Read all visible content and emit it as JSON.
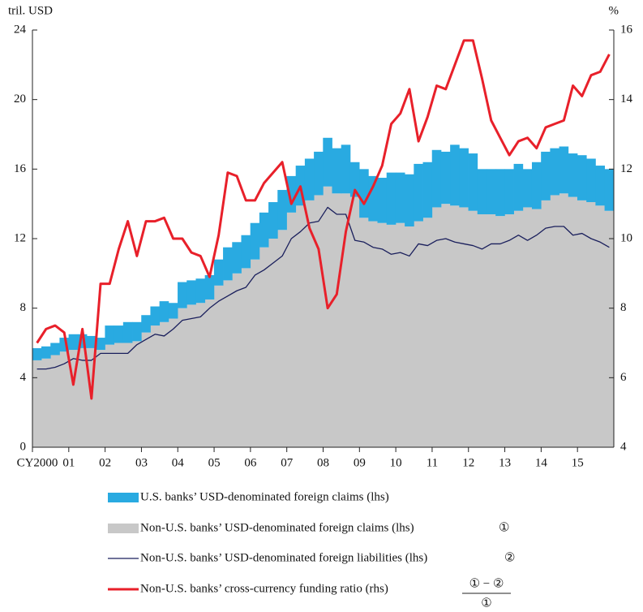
{
  "chart_data": {
    "type": "area",
    "y_axis_label": "tril. USD",
    "y2_axis_label": "%",
    "categories": [
      "CY2000",
      null,
      null,
      null,
      "01",
      null,
      null,
      null,
      "02",
      null,
      null,
      null,
      "03",
      null,
      null,
      null,
      "04",
      null,
      null,
      null,
      "05",
      null,
      null,
      null,
      "06",
      null,
      null,
      null,
      "07",
      null,
      null,
      null,
      "08",
      null,
      null,
      null,
      "09",
      null,
      null,
      null,
      "10",
      null,
      null,
      null,
      "11",
      null,
      null,
      null,
      "12",
      null,
      null,
      null,
      "13",
      null,
      null,
      null,
      "14",
      null,
      null,
      null,
      "15",
      null,
      null,
      null
    ],
    "ylim": [
      0,
      24
    ],
    "yticks": [
      0,
      4,
      8,
      12,
      16,
      20,
      24
    ],
    "y2lim": [
      4,
      16
    ],
    "y2ticks": [
      4,
      6,
      8,
      10,
      12,
      14,
      16
    ],
    "series": [
      {
        "name": "Non-U.S. banks’ USD-denominated foreign claims (lhs)",
        "type": "area",
        "stack": true,
        "color": "#c8c8c8",
        "values": [
          5.0,
          5.1,
          5.3,
          5.5,
          5.6,
          5.7,
          5.7,
          5.6,
          5.9,
          6.0,
          6.0,
          6.1,
          6.6,
          7.0,
          7.2,
          7.4,
          8.0,
          8.2,
          8.3,
          8.5,
          9.3,
          9.6,
          10.0,
          10.3,
          10.8,
          11.5,
          12.0,
          12.5,
          13.5,
          13.9,
          14.2,
          14.5,
          15.0,
          14.6,
          14.6,
          14.4,
          13.2,
          13.0,
          12.9,
          12.8,
          12.9,
          12.7,
          13.0,
          13.2,
          13.8,
          14.0,
          13.9,
          13.8,
          13.6,
          13.4,
          13.4,
          13.3,
          13.4,
          13.6,
          13.8,
          13.7,
          14.2,
          14.5,
          14.6,
          14.4,
          14.2,
          14.1,
          13.9,
          13.6
        ]
      },
      {
        "name": "U.S. banks’ USD-denominated foreign claims (lhs)",
        "type": "area",
        "stack": true,
        "color": "#29aae1",
        "values": [
          0.7,
          0.7,
          0.7,
          0.8,
          0.9,
          0.8,
          0.7,
          0.7,
          1.1,
          1.0,
          1.2,
          1.1,
          1.0,
          1.1,
          1.2,
          0.9,
          1.5,
          1.4,
          1.4,
          1.4,
          1.5,
          1.9,
          1.8,
          1.9,
          2.1,
          2.0,
          2.1,
          2.3,
          2.1,
          2.3,
          2.4,
          2.5,
          2.8,
          2.6,
          2.8,
          2.0,
          2.8,
          2.6,
          2.6,
          3.0,
          2.9,
          3.0,
          3.3,
          3.2,
          3.3,
          3.0,
          3.5,
          3.4,
          3.3,
          2.6,
          2.6,
          2.7,
          2.6,
          2.7,
          2.2,
          2.7,
          2.8,
          2.7,
          2.7,
          2.5,
          2.6,
          2.5,
          2.3,
          2.4
        ]
      },
      {
        "name": "Non-U.S. banks’ USD-denominated foreign liabilities (lhs)",
        "type": "line",
        "color": "#1a1f5c",
        "values": [
          4.5,
          4.5,
          4.6,
          4.8,
          5.1,
          5.0,
          5.0,
          5.4,
          5.4,
          5.4,
          5.4,
          5.9,
          6.2,
          6.5,
          6.4,
          6.8,
          7.3,
          7.4,
          7.5,
          8.0,
          8.4,
          8.7,
          9.0,
          9.2,
          9.9,
          10.2,
          10.6,
          11.0,
          12.0,
          12.4,
          12.9,
          13.0,
          13.8,
          13.4,
          13.4,
          11.9,
          11.8,
          11.5,
          11.4,
          11.1,
          11.2,
          11.0,
          11.7,
          11.6,
          11.9,
          12.0,
          11.8,
          11.7,
          11.6,
          11.4,
          11.7,
          11.7,
          11.9,
          12.2,
          11.9,
          12.2,
          12.6,
          12.7,
          12.7,
          12.2,
          12.3,
          12.0,
          11.8,
          11.5
        ]
      },
      {
        "name": "Non-U.S. banks’ cross-currency funding ratio (rhs)",
        "type": "line",
        "axis": "y2",
        "color": "#e8202a",
        "values": [
          7.0,
          7.4,
          7.5,
          7.3,
          5.8,
          7.4,
          5.4,
          8.7,
          8.7,
          9.7,
          10.5,
          9.5,
          10.5,
          10.5,
          10.6,
          10.0,
          10.0,
          9.6,
          9.5,
          8.9,
          10.1,
          11.9,
          11.8,
          11.1,
          11.1,
          11.6,
          11.9,
          12.2,
          11.0,
          11.5,
          10.3,
          9.7,
          8.0,
          8.4,
          10.2,
          11.4,
          11.0,
          11.5,
          12.1,
          13.3,
          13.6,
          14.3,
          12.8,
          13.5,
          14.4,
          14.3,
          15.0,
          15.7,
          15.7,
          14.6,
          13.4,
          12.9,
          12.4,
          12.8,
          12.9,
          12.6,
          13.2,
          13.3,
          13.4,
          14.4,
          14.1,
          14.7,
          14.8,
          15.3
        ]
      }
    ],
    "legend_order": [
      1,
      0,
      2,
      3
    ],
    "annotations": {
      "claims_mark": "①",
      "liabilities_mark": "②",
      "ratio_numerator": "① − ②",
      "ratio_denominator": "①"
    }
  }
}
